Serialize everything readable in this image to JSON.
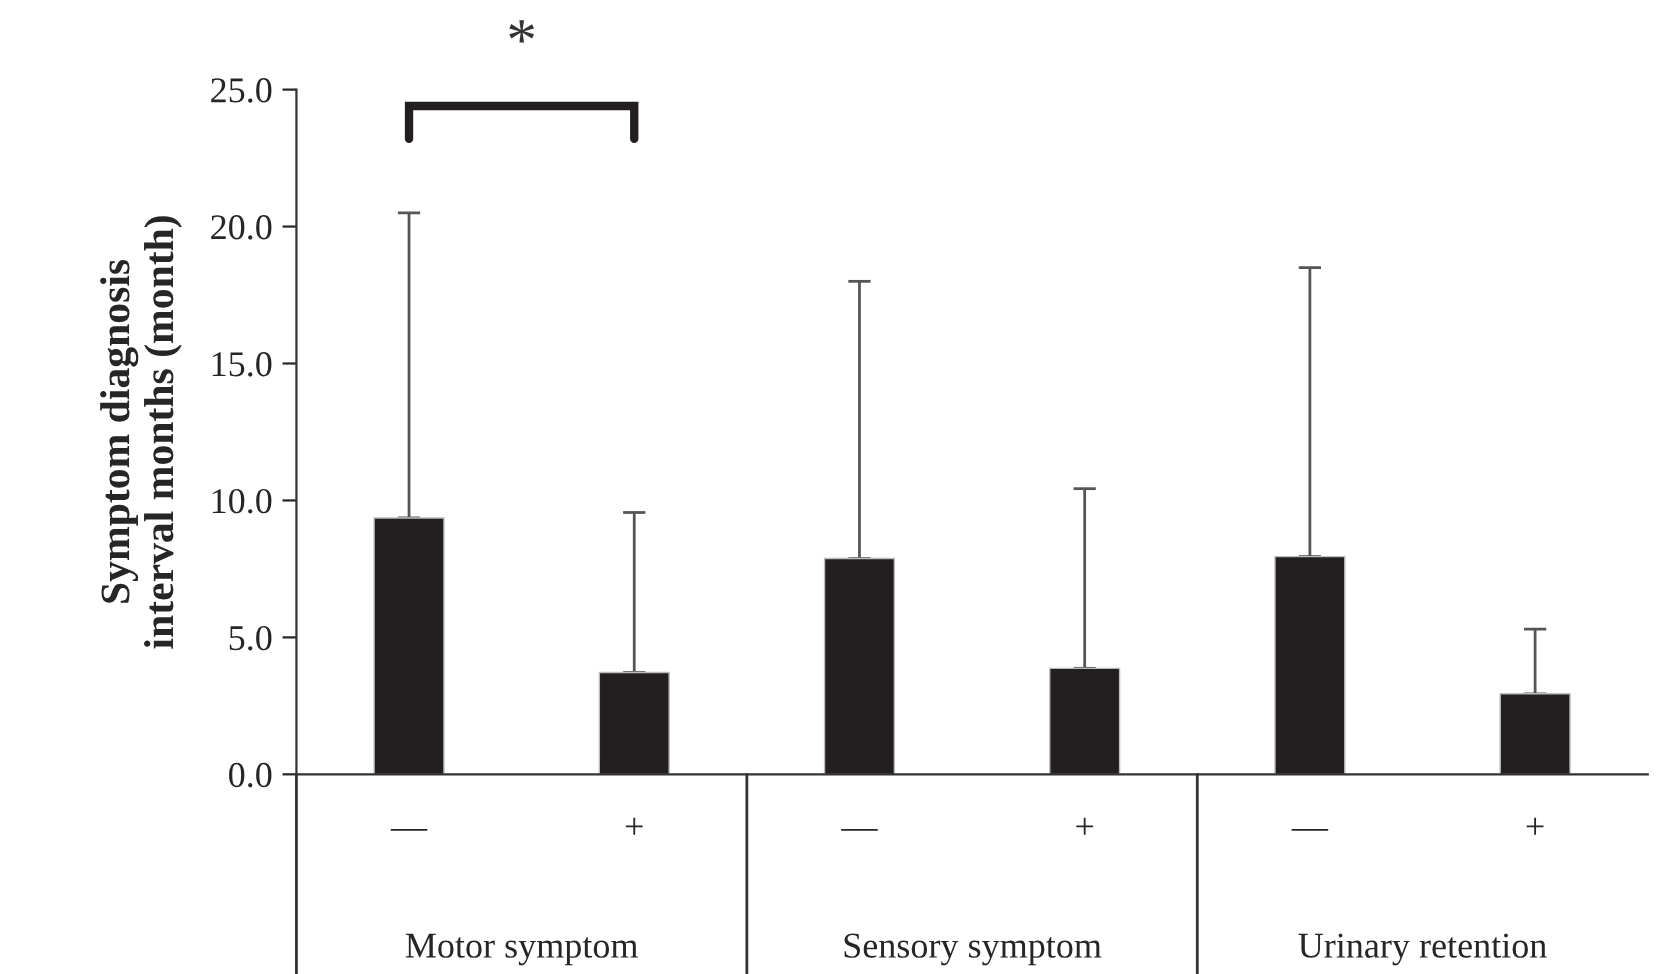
{
  "chart_data": {
    "type": "bar",
    "ylabel": "Symptom diagnosis\ninterval months (month)",
    "categories": [
      "—",
      "+",
      "—",
      "+",
      "—",
      "+"
    ],
    "values": [
      9.36,
      3.72,
      7.88,
      3.87,
      7.95,
      2.94
    ],
    "errors": [
      [
        9.36,
        20.5
      ],
      [
        3.72,
        9.56
      ],
      [
        7.88,
        18.0
      ],
      [
        3.87,
        10.43
      ],
      [
        7.95,
        18.5
      ],
      [
        2.94,
        5.3
      ]
    ],
    "color": "#231f20",
    "ylim": [
      0,
      25
    ],
    "yticks": [
      {
        "value": 0,
        "label": "0.0"
      },
      {
        "value": 5,
        "label": "5.0"
      },
      {
        "value": 10,
        "label": "10.0"
      },
      {
        "value": 15,
        "label": "15.0"
      },
      {
        "value": 20,
        "label": "20.0"
      },
      {
        "value": 25,
        "label": "25.0"
      }
    ],
    "grid": false,
    "annotations": [
      "*",
      "Motor symptom",
      "Sensory symptom",
      "Urinary retention"
    ]
  }
}
